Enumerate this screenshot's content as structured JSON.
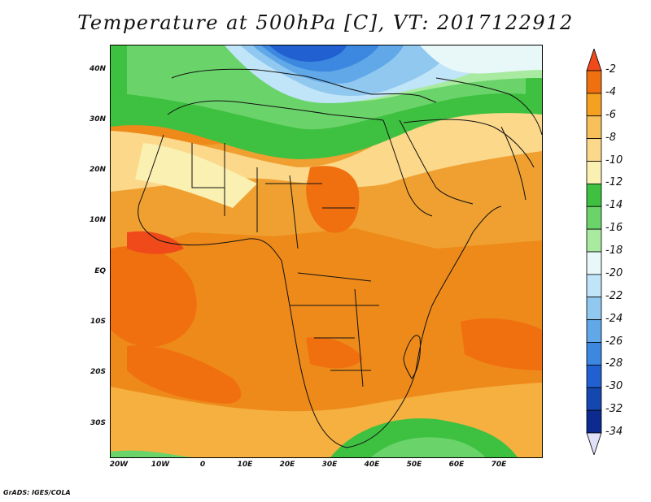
{
  "title": "Temperature at 500hPa [C], VT: 2017122912",
  "footer": "GrADS: IGES/COLA",
  "axes": {
    "lat_labels": [
      "40N",
      "30N",
      "20N",
      "10N",
      "EQ",
      "10S",
      "20S",
      "30S"
    ],
    "lon_labels": [
      "20W",
      "10W",
      "0",
      "10E",
      "20E",
      "30E",
      "40E",
      "50E",
      "60E",
      "70E"
    ]
  },
  "chart_data": {
    "type": "heatmap",
    "title": "Temperature at 500hPa [C], VT: 2017122912",
    "x_range": [
      -22,
      80
    ],
    "y_range": [
      -37,
      45
    ],
    "colorbar": {
      "labels": [
        "-2",
        "-4",
        "-6",
        "-8",
        "-10",
        "-12",
        "-14",
        "-16",
        "-18",
        "-20",
        "-22",
        "-24",
        "-26",
        "-28",
        "-30",
        "-32",
        "-34"
      ],
      "colors": [
        "#f04a1a",
        "#f07010",
        "#f5a020",
        "#f8c05a",
        "#fbd88a",
        "#faf0b2",
        "#3ec040",
        "#6ad46a",
        "#a8eaa0",
        "#e8f8f8",
        "#c0e4f8",
        "#90c8f0",
        "#60a8e8",
        "#3c88e0",
        "#2060d0",
        "#1448b0",
        "#0c2a90",
        "#141460"
      ]
    }
  }
}
